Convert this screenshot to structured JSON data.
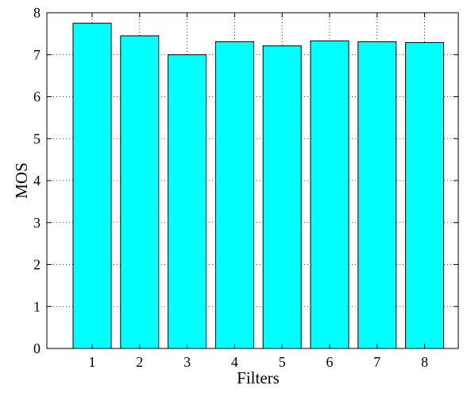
{
  "chart_data": {
    "type": "bar",
    "categories": [
      "1",
      "2",
      "3",
      "4",
      "5",
      "6",
      "7",
      "8"
    ],
    "values": [
      7.75,
      7.45,
      7.0,
      7.31,
      7.21,
      7.33,
      7.31,
      7.29
    ],
    "title": "",
    "xlabel": "Filters",
    "ylabel": "MOS",
    "ylim": [
      0,
      8
    ],
    "yticks": [
      "0",
      "1",
      "2",
      "3",
      "4",
      "5",
      "6",
      "7",
      "8"
    ],
    "grid": true,
    "grid_style": "dotted",
    "colors": {
      "bar_fill": "#00ffff",
      "bar_stroke": "#000000",
      "axis": "#000000",
      "grid": "#000000"
    }
  }
}
